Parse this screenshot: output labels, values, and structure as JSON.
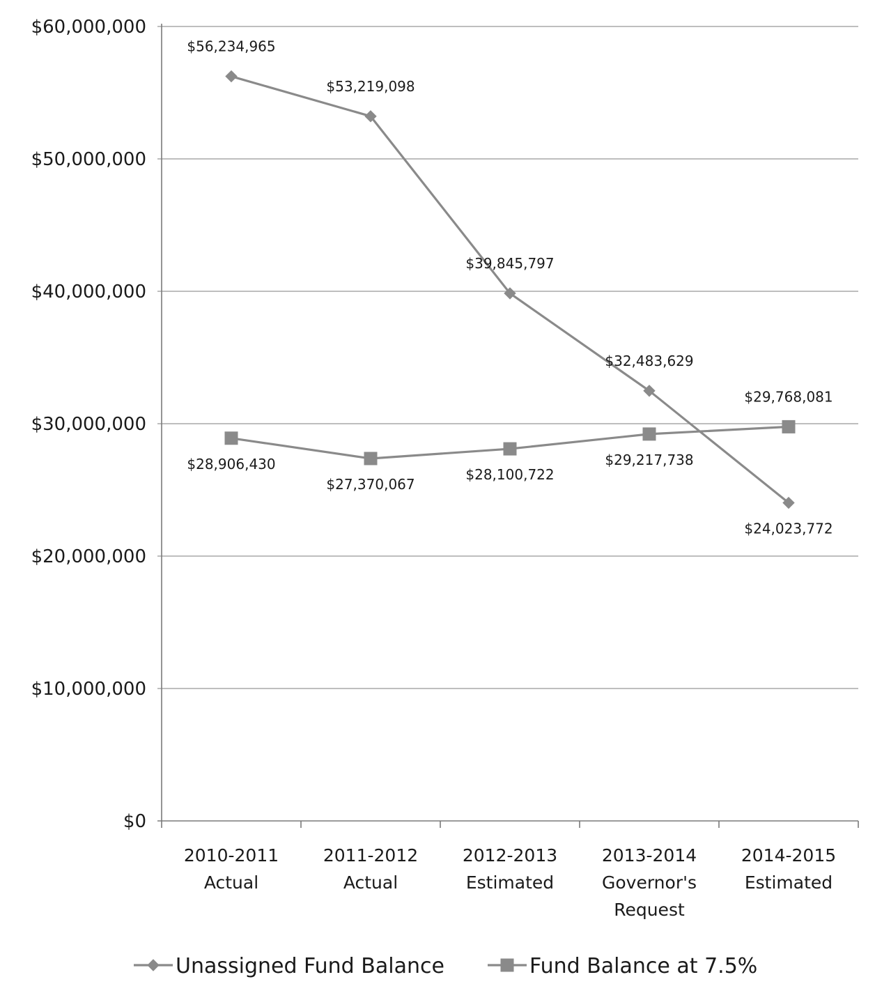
{
  "chart_data": {
    "type": "line",
    "title": "",
    "xlabel": "",
    "ylabel": "",
    "categories": [
      [
        "2010-2011",
        "Actual"
      ],
      [
        "2011-2012",
        "Actual"
      ],
      [
        "2012-2013",
        "Estimated"
      ],
      [
        "2013-2014",
        "Governor's",
        "Request"
      ],
      [
        "2014-2015",
        "Estimated"
      ]
    ],
    "ylim": [
      0,
      60000000
    ],
    "yticks": [
      0,
      10000000,
      20000000,
      30000000,
      40000000,
      50000000,
      60000000
    ],
    "ytick_labels": [
      "$0",
      "$10,000,000",
      "$20,000,000",
      "$30,000,000",
      "$40,000,000",
      "$50,000,000",
      "$60,000,000"
    ],
    "grid": true,
    "legend_position": "bottom",
    "series": [
      {
        "name": "Unassigned Fund Balance",
        "marker": "diamond",
        "color": "#8a8a8a",
        "values": [
          56234965,
          53219098,
          39845797,
          32483629,
          24023772
        ],
        "labels": [
          "$56,234,965",
          "$53,219,098",
          "$39,845,797",
          "$32,483,629",
          "$24,023,772"
        ],
        "label_position": [
          "above",
          "above",
          "above",
          "above",
          "below"
        ]
      },
      {
        "name": "Fund Balance at 7.5%",
        "marker": "square",
        "color": "#8a8a8a",
        "values": [
          28906430,
          27370067,
          28100722,
          29217738,
          29768081
        ],
        "labels": [
          "$28,906,430",
          "$27,370,067",
          "$28,100,722",
          "$29,217,738",
          "$29,768,081"
        ],
        "label_position": [
          "below",
          "below",
          "below",
          "below",
          "above"
        ]
      }
    ]
  }
}
